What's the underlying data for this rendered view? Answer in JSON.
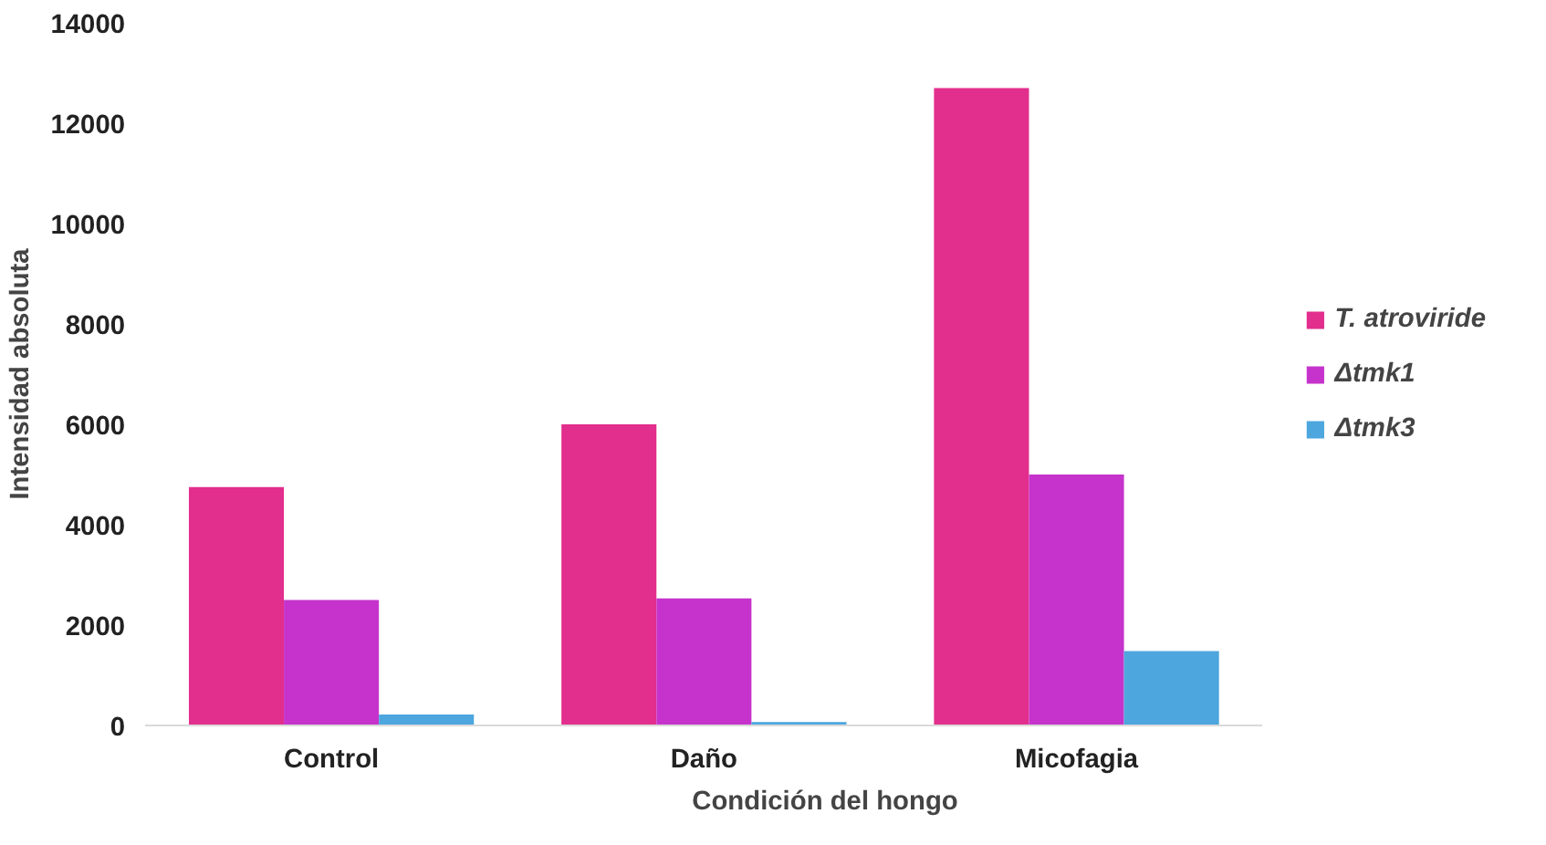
{
  "chart_data": {
    "type": "bar",
    "xlabel": "Condición del hongo",
    "ylabel": "Intensidad absoluta",
    "categories": [
      "Control",
      "Daño",
      "Micofagia"
    ],
    "series": [
      {
        "name": "T. atroviride",
        "color": "#e22e8c",
        "values": [
          4750,
          6000,
          12700
        ]
      },
      {
        "name": "Δtmk1",
        "color": "#c633cc",
        "values": [
          2500,
          2530,
          5000
        ]
      },
      {
        "name": "Δtmk3",
        "color": "#4da6de",
        "values": [
          220,
          70,
          1480
        ]
      }
    ],
    "ylim": [
      0,
      14000
    ],
    "yticks": [
      0,
      2000,
      4000,
      6000,
      8000,
      10000,
      12000,
      14000
    ],
    "grid": false,
    "legend": "right"
  }
}
